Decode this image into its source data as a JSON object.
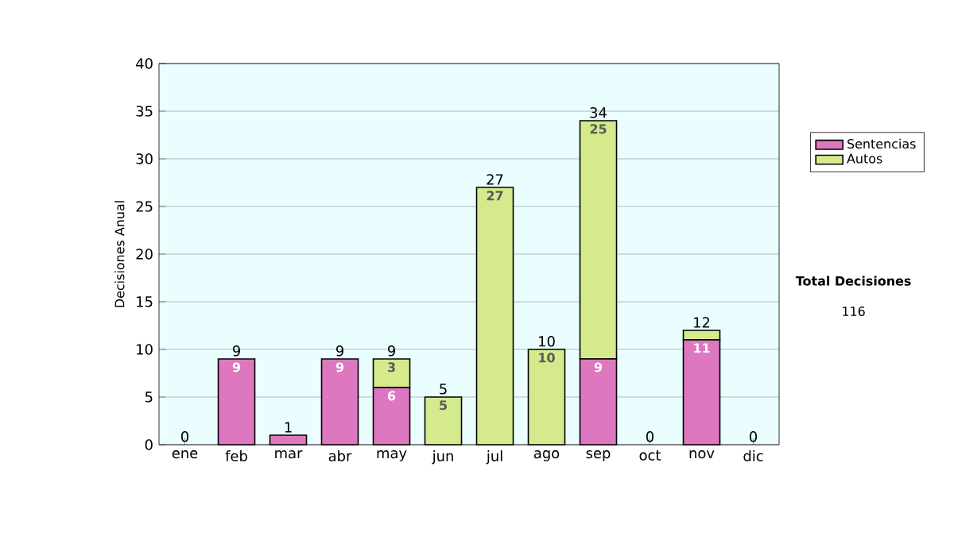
{
  "chart_data": {
    "type": "bar",
    "stacked": true,
    "ylabel": "Decisiones Anual",
    "categories": [
      "ene",
      "feb",
      "mar",
      "abr",
      "may",
      "jun",
      "jul",
      "ago",
      "sep",
      "oct",
      "nov",
      "dic"
    ],
    "series": [
      {
        "name": "Sentencias",
        "color": "#dd77c0",
        "values": [
          0,
          9,
          1,
          9,
          6,
          0,
          0,
          0,
          9,
          0,
          11,
          0
        ],
        "value_labels": [
          null,
          "9",
          null,
          "9",
          "6",
          null,
          null,
          null,
          "9",
          null,
          "11",
          null
        ]
      },
      {
        "name": "Autos",
        "color": "#d4ea8c",
        "values": [
          0,
          0,
          0,
          0,
          3,
          5,
          27,
          10,
          25,
          0,
          1,
          0
        ],
        "value_labels": [
          null,
          null,
          null,
          null,
          "3",
          "5",
          "27",
          "10",
          "25",
          null,
          null,
          null
        ]
      }
    ],
    "totals": [
      "0",
      "9",
      "1",
      "9",
      "9",
      "5",
      "27",
      "10",
      "34",
      "0",
      "12",
      "0"
    ],
    "ylim": [
      0,
      40
    ],
    "yticks": [
      0,
      5,
      10,
      15,
      20,
      25,
      30,
      35,
      40
    ],
    "grid": "y",
    "legend": "right",
    "annotations": [
      "Total Decisiones",
      "116"
    ]
  }
}
